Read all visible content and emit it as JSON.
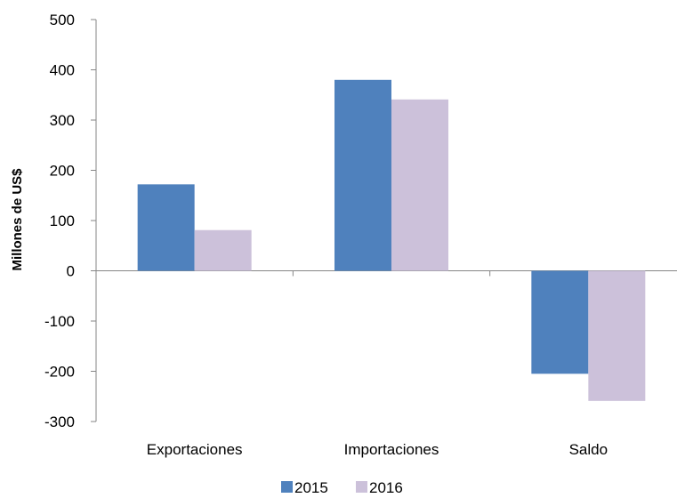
{
  "chart_data": {
    "type": "bar",
    "title": "",
    "xlabel": "",
    "ylabel": "Millones de US$",
    "categories": [
      "Exportaciones",
      "Importaciones",
      "Saldo"
    ],
    "series": [
      {
        "name": "2015",
        "values": [
          172,
          380,
          -205
        ],
        "color": "#4f81bd"
      },
      {
        "name": "2016",
        "values": [
          81,
          341,
          -259
        ],
        "color": "#ccc1da"
      }
    ],
    "ylim": [
      -300,
      500
    ],
    "yticks": [
      500,
      400,
      300,
      200,
      100,
      0,
      -100,
      -200,
      -300
    ],
    "grid": false,
    "legend": "bottom-center"
  }
}
